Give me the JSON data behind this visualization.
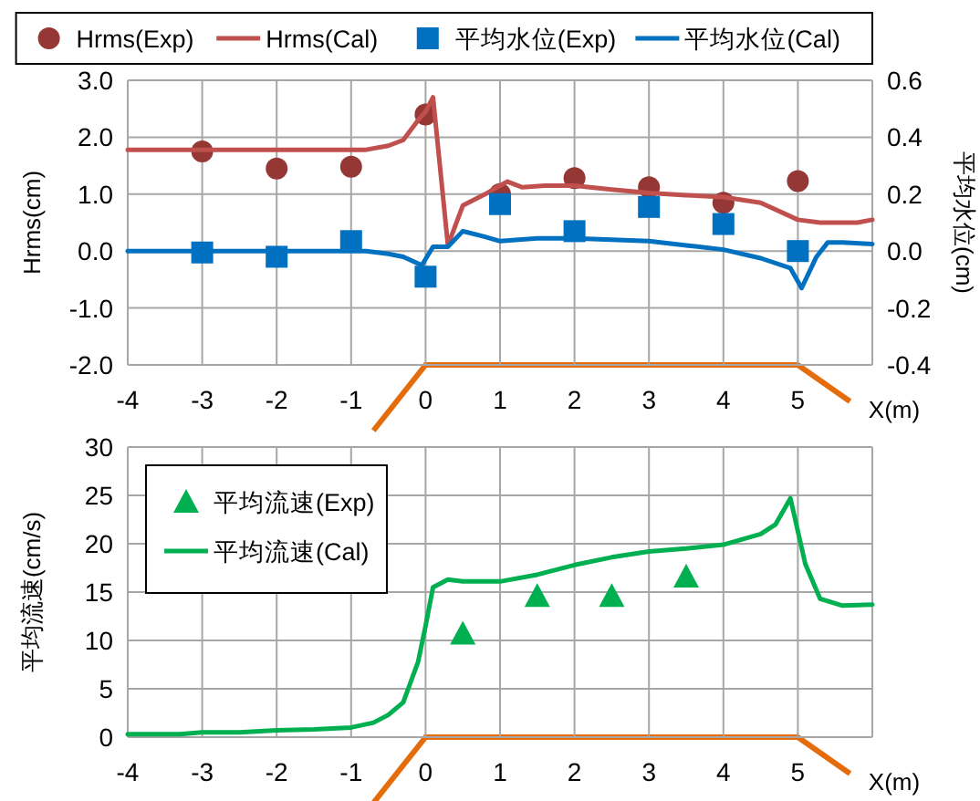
{
  "chart_data": [
    {
      "type": "line",
      "xlabel": "X(m)",
      "ylabel": "Hrms(cm)",
      "y2label": "平均水位(cm)",
      "xlim": [
        -4,
        6
      ],
      "xticks": [
        -4,
        -3,
        -2,
        -1,
        0,
        1,
        2,
        3,
        4,
        5
      ],
      "ylim": [
        -2,
        3
      ],
      "yticks": [
        {
          "value": -2,
          "label": "-2.0"
        },
        {
          "value": -1,
          "label": "-1.0"
        },
        {
          "value": 0,
          "label": "0.0"
        },
        {
          "value": 1,
          "label": "1.0"
        },
        {
          "value": 2,
          "label": "2.0"
        },
        {
          "value": 3,
          "label": "3.0"
        }
      ],
      "y2lim": [
        -0.4,
        0.6
      ],
      "y2ticks": [
        {
          "value": -0.4,
          "label": "-0.4"
        },
        {
          "value": -0.2,
          "label": "-0.2"
        },
        {
          "value": 0,
          "label": "0.0"
        },
        {
          "value": 0.2,
          "label": "0.2"
        },
        {
          "value": 0.4,
          "label": "0.4"
        },
        {
          "value": 0.6,
          "label": "0.6"
        }
      ],
      "grid": true,
      "legend": "top",
      "series": [
        {
          "name": "Hrms(Exp)",
          "type": "scatter",
          "marker": "circle",
          "color": "#953735",
          "x": [
            -3,
            -2,
            -1,
            0,
            1,
            2,
            3,
            4,
            5
          ],
          "values": [
            1.75,
            1.45,
            1.48,
            2.4,
            1.0,
            1.28,
            1.12,
            0.85,
            1.23
          ]
        },
        {
          "name": "Hrms(Cal)",
          "type": "line",
          "color": "#c0504d",
          "x": [
            -4,
            -0.8,
            -0.5,
            -0.3,
            -0.1,
            0,
            0.1,
            0.3,
            0.5,
            0.8,
            1,
            1.1,
            1.3,
            1.6,
            2,
            2.5,
            3,
            3.5,
            4,
            4.5,
            5,
            5.3,
            5.8,
            6
          ],
          "values": [
            1.78,
            1.78,
            1.85,
            1.95,
            2.3,
            2.45,
            2.7,
            0.1,
            0.8,
            1.0,
            1.15,
            1.22,
            1.12,
            1.15,
            1.15,
            1.08,
            1.02,
            0.98,
            0.95,
            0.85,
            0.55,
            0.5,
            0.5,
            0.55
          ]
        },
        {
          "name": "平均水位(Exp)",
          "type": "scatter",
          "marker": "square",
          "axis": "y2",
          "color": "#0070c0",
          "x": [
            -3,
            -2,
            -1,
            0,
            1,
            2,
            3,
            4,
            5
          ],
          "values": [
            -0.005,
            -0.02,
            0.035,
            -0.09,
            0.165,
            0.07,
            0.155,
            0.095,
            0.0
          ]
        },
        {
          "name": "平均水位(Cal)",
          "type": "line",
          "axis": "y2",
          "color": "#0070c0",
          "x": [
            -4,
            -0.8,
            -0.5,
            -0.3,
            -0.05,
            0.1,
            0.3,
            0.5,
            0.8,
            1,
            1.5,
            2,
            2.5,
            3,
            3.5,
            4,
            4.5,
            4.9,
            5.05,
            5.25,
            5.4,
            5.6,
            6
          ],
          "values": [
            0,
            0,
            -0.01,
            -0.02,
            -0.05,
            0.015,
            0.015,
            0.07,
            0.05,
            0.035,
            0.045,
            0.045,
            0.04,
            0.035,
            0.02,
            0.005,
            -0.025,
            -0.06,
            -0.13,
            -0.02,
            0.03,
            0.03,
            0.025
          ]
        }
      ]
    },
    {
      "type": "line",
      "xlabel": "X(m)",
      "ylabel": "平均流速(cm/s)",
      "xlim": [
        -4,
        6
      ],
      "xticks": [
        -4,
        -3,
        -2,
        -1,
        0,
        1,
        2,
        3,
        4,
        5
      ],
      "ylim": [
        0,
        30
      ],
      "yticks": [
        0,
        5,
        10,
        15,
        20,
        25,
        30
      ],
      "grid": true,
      "legend": "top left",
      "series": [
        {
          "name": "平均流速(Exp)",
          "type": "scatter",
          "marker": "triangle",
          "color": "#00b050",
          "x": [
            0.5,
            1.5,
            2.5,
            3.5
          ],
          "values": [
            10.7,
            14.6,
            14.6,
            16.6
          ]
        },
        {
          "name": "平均流速(Cal)",
          "type": "line",
          "color": "#00b050",
          "x": [
            -4,
            -3.3,
            -3,
            -2.5,
            -2,
            -1.5,
            -1,
            -0.7,
            -0.5,
            -0.3,
            -0.1,
            0,
            0.1,
            0.3,
            0.5,
            1,
            1.5,
            2,
            2.5,
            3,
            3.5,
            4,
            4.5,
            4.7,
            4.9,
            5.1,
            5.3,
            5.6,
            6
          ],
          "values": [
            0.3,
            0.3,
            0.5,
            0.5,
            0.7,
            0.8,
            1.0,
            1.5,
            2.3,
            3.6,
            7.8,
            11.5,
            15.5,
            16.3,
            16.1,
            16.1,
            16.8,
            17.8,
            18.6,
            19.2,
            19.5,
            19.9,
            21,
            22,
            24.7,
            17.9,
            14.3,
            13.6,
            13.7
          ]
        }
      ]
    }
  ]
}
